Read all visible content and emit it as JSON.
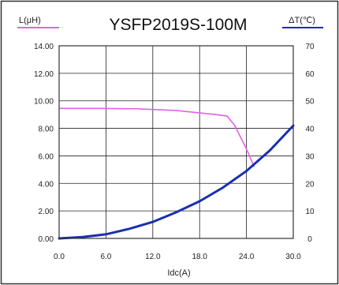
{
  "colors": {
    "inductance": "#e062e6",
    "temperature": "#1a2fb0",
    "grid": "#222222",
    "frame": "#333333"
  },
  "chart_data": {
    "type": "line",
    "title": "YSFP2019S-100M",
    "xlabel": "Idc(A)",
    "ylabel_left": "L(μH)",
    "ylabel_right": "ΔT(℃)",
    "xlim": [
      0,
      30
    ],
    "ylim_left": [
      0,
      14
    ],
    "ylim_right": [
      0,
      70
    ],
    "grid": true,
    "x_ticks": [
      "0.0",
      "6.0",
      "12.0",
      "18.0",
      "24.0",
      "30.0"
    ],
    "y_left_ticks": [
      "0.00",
      "2.00",
      "4.00",
      "6.00",
      "8.00",
      "10.00",
      "12.00",
      "14.00"
    ],
    "y_right_ticks": [
      "0",
      "10",
      "20",
      "30",
      "40",
      "50",
      "60",
      "70"
    ],
    "series": [
      {
        "axis": "left",
        "x": [
          0,
          5,
          10,
          15,
          20,
          21.5,
          22.5,
          24,
          25
        ],
        "y": [
          9.45,
          9.45,
          9.42,
          9.3,
          9.0,
          8.9,
          8.2,
          6.5,
          5.2
        ]
      },
      {
        "axis": "right",
        "x": [
          0,
          3,
          6,
          9,
          12,
          15,
          18,
          21,
          24,
          27,
          30
        ],
        "y": [
          0,
          0.5,
          1.5,
          3.5,
          6,
          9.5,
          13.5,
          18.5,
          24.5,
          32,
          41
        ]
      }
    ]
  }
}
